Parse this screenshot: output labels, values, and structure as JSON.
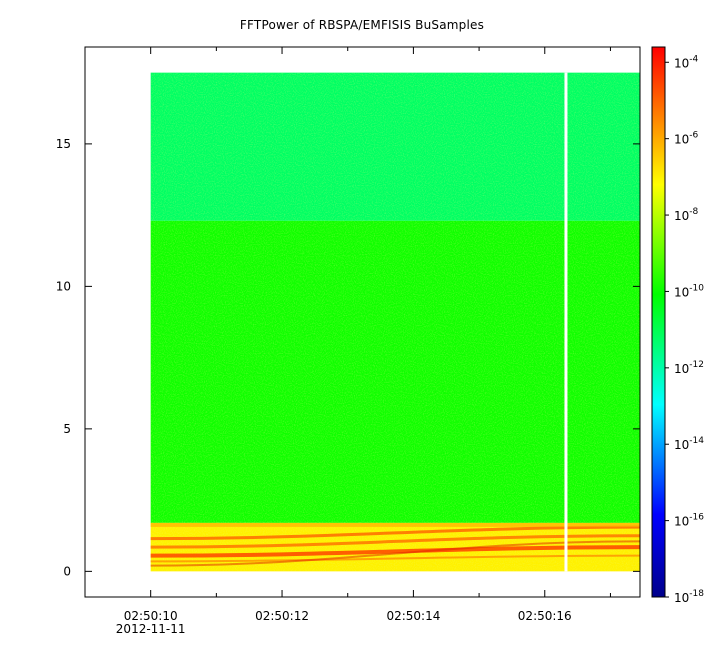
{
  "chart_data": {
    "type": "heatmap",
    "title": "FFTPower of RBSPA/EMFISIS  BuSamples",
    "xlabel": "",
    "ylabel": "",
    "x_ticks": [
      {
        "label": "02:50:10",
        "sublabel": "2012-11-11",
        "t": 10
      },
      {
        "label": "02:50:12",
        "t": 12
      },
      {
        "label": "02:50:14",
        "t": 14
      },
      {
        "label": "02:50:16",
        "t": 16
      }
    ],
    "x_minor_ticks": [
      11,
      13,
      15,
      17
    ],
    "xlim": [
      9.0,
      17.45
    ],
    "y_ticks": [
      0,
      5,
      10,
      15
    ],
    "ylim": [
      -0.9,
      18.4
    ],
    "data_extent": {
      "t_start": 10.0,
      "t_end": 17.45,
      "f_min": 0.0,
      "f_max": 17.5
    },
    "data_gap": {
      "t_start": 16.3,
      "t_end": 16.34
    },
    "bands": [
      {
        "f_from": 12.3,
        "f_to": 17.5,
        "level": -11.2,
        "note": "upper band"
      },
      {
        "f_from": 1.7,
        "f_to": 12.3,
        "level": -9.9,
        "note": "middle band"
      },
      {
        "f_from": 0.0,
        "f_to": 1.7,
        "level": -7.0,
        "note": "low-frequency enhanced band"
      }
    ],
    "colorbar": {
      "scale": "log",
      "range": [
        -18,
        -3.6
      ],
      "ticks": [
        {
          "base": "10",
          "exp": "-4"
        },
        {
          "base": "10",
          "exp": "-6"
        },
        {
          "base": "10",
          "exp": "-8"
        },
        {
          "base": "10",
          "exp": "-10"
        },
        {
          "base": "10",
          "exp": "-12"
        },
        {
          "base": "10",
          "exp": "-14"
        },
        {
          "base": "10",
          "exp": "-16"
        },
        {
          "base": "10",
          "exp": "-18"
        }
      ],
      "colormap": [
        "#00008b",
        "#0000ff",
        "#00ffff",
        "#00ff00",
        "#ffff00",
        "#ff0000"
      ]
    }
  }
}
